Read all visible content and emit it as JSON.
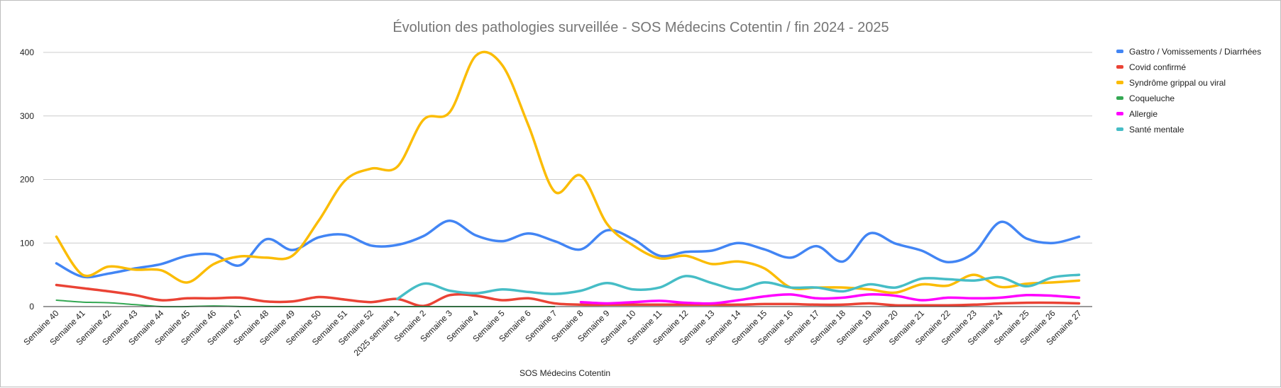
{
  "chart_data": {
    "type": "line",
    "title": "Évolution des pathologies surveillée - SOS Médecins Cotentin / fin 2024 - 2025",
    "xlabel": "SOS Médecins Cotentin",
    "ylabel": "",
    "ylim": [
      0,
      400
    ],
    "yticks": [
      0,
      100,
      200,
      300,
      400
    ],
    "grid": true,
    "legend_position": "right",
    "categories": [
      "Semaine 40",
      "Semaine 41",
      "Semaine 42",
      "Semaine 43",
      "Semaine 44",
      "Semaine 45",
      "Semaine 46",
      "Semaine 47",
      "Semaine 48",
      "Semaine 49",
      "Semaine 50",
      "Semaine 51",
      "Semaine 52",
      "2025 semaine 1",
      "Semaine 2",
      "Semaine 3",
      "Semaine 4",
      "Semaine 5",
      "Semaine 6",
      "Semaine 7",
      "Semaine 8",
      "Semaine 9",
      "Semaine 10",
      "Semaine 11",
      "Semaine 12",
      "Semaine 13",
      "Semaine 14",
      "Semaine 15",
      "Semaine 16",
      "Semaine 17",
      "Semaine 18",
      "Semaine 19",
      "Semaine 20",
      "Semaine 21",
      "Semaine 22",
      "Semaine 23",
      "Semaine 24",
      "Semaine 25",
      "Semaine 26",
      "Semaine 27"
    ],
    "series": [
      {
        "name": "Gastro / Vomissements / Diarrhées",
        "color": "#4285f4",
        "width": 3.5,
        "values": [
          68,
          47,
          52,
          60,
          67,
          80,
          82,
          65,
          106,
          89,
          109,
          113,
          96,
          97,
          111,
          135,
          112,
          103,
          115,
          103,
          90,
          120,
          106,
          80,
          86,
          88,
          100,
          90,
          77,
          95,
          71,
          115,
          99,
          88,
          70,
          85,
          133,
          107,
          100,
          110
        ]
      },
      {
        "name": "Covid confirmé",
        "color": "#ea4335",
        "width": 3.5,
        "values": [
          34,
          29,
          24,
          18,
          10,
          13,
          13,
          14,
          8,
          8,
          15,
          11,
          7,
          12,
          1,
          18,
          17,
          10,
          13,
          5,
          3,
          3,
          3,
          3,
          3,
          3,
          3,
          4,
          4,
          3,
          3,
          5,
          2,
          2,
          2,
          3,
          5,
          6,
          6,
          5
        ]
      },
      {
        "name": "Syndrôme grippal ou viral",
        "color": "#fbbc04",
        "width": 3.5,
        "values": [
          110,
          50,
          63,
          58,
          57,
          38,
          67,
          79,
          77,
          80,
          135,
          198,
          217,
          220,
          294,
          306,
          395,
          380,
          285,
          181,
          206,
          130,
          96,
          76,
          80,
          67,
          71,
          60,
          30,
          30,
          30,
          27,
          22,
          35,
          33,
          50,
          31,
          36,
          38,
          41
        ]
      },
      {
        "name": "Coqueluche",
        "color": "#34a853",
        "width": 2,
        "values": [
          10,
          7,
          6,
          3,
          0,
          0,
          1,
          0,
          0,
          0,
          0,
          0,
          0,
          0,
          0,
          0,
          0,
          0,
          0,
          0,
          null,
          null,
          null,
          null,
          null,
          null,
          null,
          null,
          null,
          null,
          null,
          null,
          null,
          null,
          null,
          null,
          null,
          null,
          null,
          null
        ]
      },
      {
        "name": "Allergie",
        "color": "#ff00ff",
        "width": 3.5,
        "values": [
          null,
          null,
          null,
          null,
          null,
          null,
          null,
          null,
          null,
          null,
          null,
          null,
          null,
          null,
          null,
          null,
          null,
          null,
          null,
          null,
          7,
          5,
          7,
          9,
          6,
          5,
          10,
          16,
          19,
          13,
          14,
          19,
          17,
          10,
          14,
          13,
          14,
          18,
          17,
          14
        ]
      },
      {
        "name": "Santé mentale",
        "color": "#46bdc6",
        "width": 3.5,
        "values": [
          null,
          null,
          null,
          null,
          null,
          null,
          null,
          null,
          null,
          null,
          null,
          null,
          null,
          12,
          36,
          25,
          21,
          27,
          23,
          20,
          25,
          37,
          27,
          30,
          48,
          37,
          27,
          38,
          30,
          30,
          24,
          35,
          30,
          44,
          43,
          41,
          46,
          32,
          46,
          50
        ]
      }
    ]
  }
}
